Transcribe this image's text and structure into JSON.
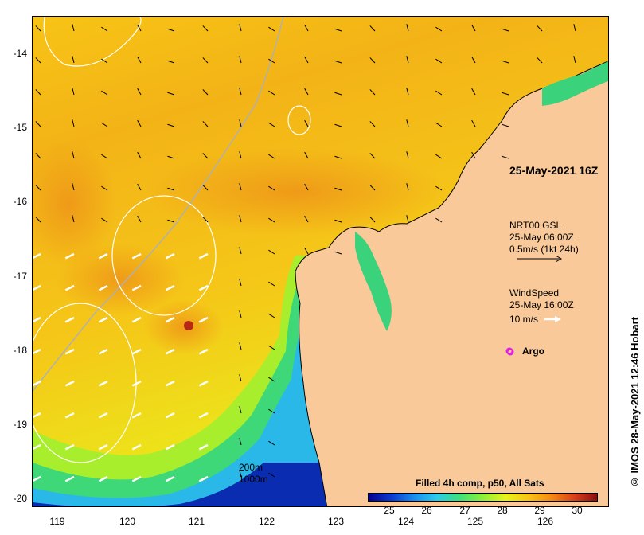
{
  "map": {
    "y_ticks": [
      "-14",
      "-15",
      "-16",
      "-17",
      "-18",
      "-19",
      "-20"
    ],
    "x_ticks": [
      "119",
      "120",
      "121",
      "122",
      "123",
      "124",
      "125",
      "126"
    ],
    "timestamp": "25-May-2021 16Z",
    "current_legend": {
      "line1": "NRT00 GSL",
      "line2": "25-May 06:00Z",
      "line3": "0.5m/s (1kt 24h)"
    },
    "wind_legend": {
      "line1": "WindSpeed",
      "line2": "25-May 16:00Z",
      "line3": "10 m/s"
    },
    "argo_label": "Argo",
    "depth_labels": [
      "200m",
      "1000m"
    ],
    "colorbar": {
      "title": "Filled 4h comp, p50, All Sats",
      "ticks": [
        "25",
        "26",
        "27",
        "28",
        "29",
        "30"
      ]
    },
    "credit": "© IMOS 28-May-2021 12:46 Hobart",
    "colors": {
      "land": "#f9c99a",
      "coast": "#000000",
      "argo": "#e020e0"
    }
  }
}
